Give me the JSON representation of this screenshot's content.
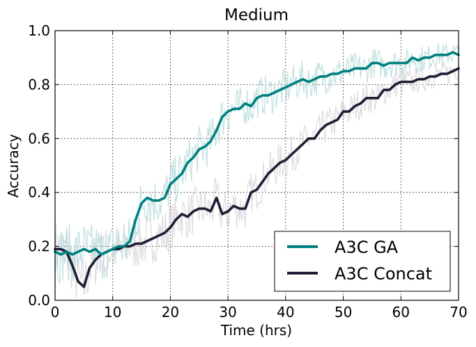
{
  "chart_data": {
    "type": "line",
    "title": "Medium",
    "xlabel": "Time (hrs)",
    "ylabel": "Accuracy",
    "xlim": [
      0,
      70
    ],
    "ylim": [
      0.0,
      1.0
    ],
    "xticks": [
      0,
      10,
      20,
      30,
      40,
      50,
      60,
      70
    ],
    "yticks": [
      0.0,
      0.2,
      0.4,
      0.6,
      0.8,
      1.0
    ],
    "xtick_labels": [
      "0",
      "10",
      "20",
      "30",
      "40",
      "50",
      "60",
      "70"
    ],
    "ytick_labels": [
      "0.0",
      "0.2",
      "0.4",
      "0.6",
      "0.8",
      "1.0"
    ],
    "grid": true,
    "legend_position": "lower-right",
    "series": [
      {
        "name": "A3C GA",
        "color": "#008080",
        "band_color": "#b8dcdc",
        "x": [
          0,
          1,
          2,
          3,
          4,
          5,
          6,
          7,
          8,
          9,
          10,
          11,
          12,
          13,
          14,
          15,
          16,
          17,
          18,
          19,
          20,
          21,
          22,
          23,
          24,
          25,
          26,
          27,
          28,
          29,
          30,
          31,
          32,
          33,
          34,
          35,
          36,
          37,
          38,
          39,
          40,
          41,
          42,
          43,
          44,
          45,
          46,
          47,
          48,
          49,
          50,
          51,
          52,
          53,
          54,
          55,
          56,
          57,
          58,
          59,
          60,
          61,
          62,
          63,
          64,
          65,
          66,
          67,
          68,
          69,
          70
        ],
        "y": [
          0.18,
          0.17,
          0.18,
          0.17,
          0.18,
          0.19,
          0.18,
          0.19,
          0.17,
          0.18,
          0.19,
          0.2,
          0.2,
          0.22,
          0.3,
          0.36,
          0.38,
          0.37,
          0.37,
          0.38,
          0.43,
          0.45,
          0.47,
          0.51,
          0.53,
          0.56,
          0.57,
          0.59,
          0.63,
          0.68,
          0.7,
          0.71,
          0.71,
          0.73,
          0.72,
          0.75,
          0.76,
          0.76,
          0.77,
          0.78,
          0.79,
          0.8,
          0.81,
          0.82,
          0.81,
          0.82,
          0.83,
          0.83,
          0.84,
          0.84,
          0.85,
          0.85,
          0.86,
          0.86,
          0.86,
          0.88,
          0.88,
          0.87,
          0.88,
          0.88,
          0.88,
          0.88,
          0.9,
          0.89,
          0.9,
          0.9,
          0.91,
          0.91,
          0.91,
          0.92,
          0.91
        ]
      },
      {
        "name": "A3C Concat",
        "color": "#1e1e35",
        "band_color": "#d8d8dc",
        "x": [
          0,
          1,
          2,
          3,
          4,
          5,
          6,
          7,
          8,
          9,
          10,
          11,
          12,
          13,
          14,
          15,
          16,
          17,
          18,
          19,
          20,
          21,
          22,
          23,
          24,
          25,
          26,
          27,
          28,
          29,
          30,
          31,
          32,
          33,
          34,
          35,
          36,
          37,
          38,
          39,
          40,
          41,
          42,
          43,
          44,
          45,
          46,
          47,
          48,
          49,
          50,
          51,
          52,
          53,
          54,
          55,
          56,
          57,
          58,
          59,
          60,
          61,
          62,
          63,
          64,
          65,
          66,
          67,
          68,
          69,
          70
        ],
        "y": [
          0.19,
          0.19,
          0.18,
          0.13,
          0.07,
          0.05,
          0.12,
          0.15,
          0.17,
          0.18,
          0.19,
          0.19,
          0.2,
          0.2,
          0.21,
          0.21,
          0.22,
          0.23,
          0.24,
          0.25,
          0.27,
          0.3,
          0.32,
          0.31,
          0.33,
          0.34,
          0.34,
          0.33,
          0.38,
          0.32,
          0.33,
          0.35,
          0.34,
          0.34,
          0.4,
          0.41,
          0.44,
          0.47,
          0.49,
          0.51,
          0.52,
          0.54,
          0.56,
          0.58,
          0.6,
          0.6,
          0.63,
          0.65,
          0.66,
          0.67,
          0.7,
          0.7,
          0.72,
          0.73,
          0.75,
          0.75,
          0.75,
          0.78,
          0.78,
          0.8,
          0.81,
          0.81,
          0.81,
          0.82,
          0.82,
          0.83,
          0.83,
          0.84,
          0.84,
          0.85,
          0.86
        ]
      }
    ]
  }
}
